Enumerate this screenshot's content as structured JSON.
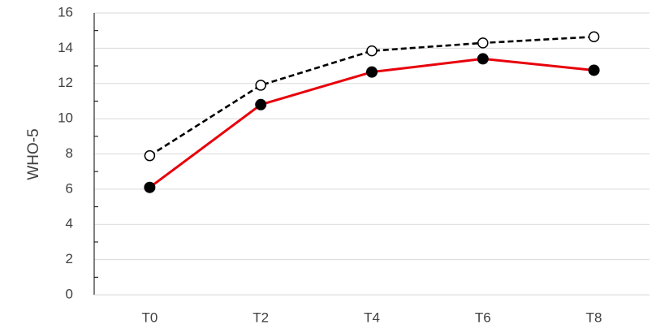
{
  "chart_data": {
    "type": "line",
    "title": "",
    "xlabel": "",
    "ylabel": "WHO-5",
    "categories": [
      "T0",
      "T2",
      "T4",
      "T6",
      "T8"
    ],
    "ylim": [
      0,
      16
    ],
    "yticks": [
      0,
      2,
      4,
      6,
      8,
      10,
      12,
      14,
      16
    ],
    "grid": true,
    "legend": "none",
    "series": [
      {
        "values": [
          7.9,
          11.9,
          13.85,
          14.3,
          14.65
        ],
        "color": "#000000",
        "line_style": "dashed",
        "marker": "open-circle"
      },
      {
        "values": [
          6.1,
          10.8,
          12.65,
          13.4,
          12.75
        ],
        "color": "#e8000b",
        "line_style": "solid",
        "marker": "filled-circle"
      }
    ]
  }
}
